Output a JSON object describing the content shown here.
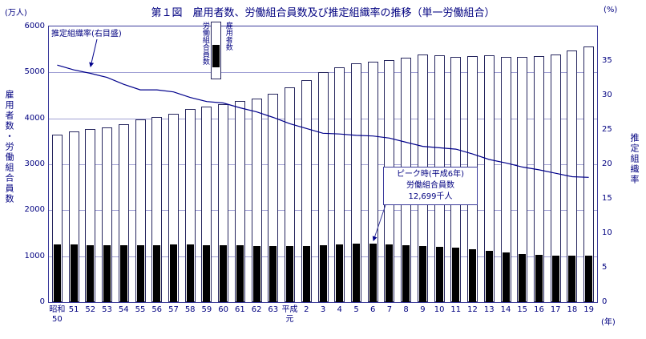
{
  "title": "第１図　雇用者数、労働組合員数及び推定組織率の推移（単一労働組合）",
  "axes": {
    "left_unit": "(万人)",
    "right_unit": "(%)",
    "x_unit": "(年)",
    "left_label": "雇用者数・労働組合員数",
    "right_label": "推定組織率",
    "left_ticks": [
      0,
      1000,
      2000,
      3000,
      4000,
      5000,
      6000
    ],
    "right_ticks": [
      0,
      5,
      10,
      15,
      20,
      25,
      30,
      35
    ]
  },
  "legend": {
    "union_label": "労働組合員数",
    "employee_label": "雇用者数"
  },
  "annotations": {
    "rate_note": "推定組織率(右目盛)",
    "peak_note_lines": [
      "ピーク時(平成6年)",
      "労働組合員数",
      "12,699千人"
    ]
  },
  "colors": {
    "text": "#000080",
    "plot_border": "#3c3c9c",
    "gridline": "#a0a0d4",
    "bar_outline": "#26265e",
    "union_bar_fill": "#000000",
    "rate_line": "#00008b"
  },
  "chart_data": {
    "type": "bar+line",
    "title": "雇用者数、労働組合員数及び推定組織率の推移（単一労働組合）",
    "x_labels_main": [
      "昭和",
      "51",
      "52",
      "53",
      "54",
      "55",
      "56",
      "57",
      "58",
      "59",
      "60",
      "61",
      "62",
      "63",
      "平成",
      "2",
      "3",
      "4",
      "5",
      "6",
      "7",
      "8",
      "9",
      "10",
      "11",
      "12",
      "13",
      "14",
      "15",
      "16",
      "17",
      "18",
      "19"
    ],
    "x_labels_sub": [
      "50",
      "",
      "",
      "",
      "",
      "",
      "",
      "",
      "",
      "",
      "",
      "",
      "",
      "",
      "元",
      "",
      "",
      "",
      "",
      "",
      "",
      "",
      "",
      "",
      "",
      "",
      "",
      "",
      "",
      "",
      "",
      "",
      ""
    ],
    "left_ylim": [
      0,
      6000
    ],
    "right_ylim": [
      0,
      40
    ],
    "series": [
      {
        "name": "雇用者数",
        "unit": "万人",
        "type": "bar",
        "axis": "left",
        "values": [
          3646,
          3712,
          3769,
          3799,
          3876,
          3971,
          4037,
          4098,
          4208,
          4265,
          4313,
          4379,
          4428,
          4538,
          4679,
          4835,
          5002,
          5119,
          5202,
          5236,
          5263,
          5322,
          5391,
          5368,
          5331,
          5356,
          5369,
          5331,
          5335,
          5355,
          5393,
          5472,
          5561
        ]
      },
      {
        "name": "労働組合員数",
        "unit": "千人",
        "type": "bar",
        "axis": "left",
        "values": [
          12590,
          12509,
          12437,
          12383,
          12309,
          12369,
          12471,
          12526,
          12520,
          12464,
          12418,
          12343,
          12272,
          12227,
          12227,
          12265,
          12397,
          12541,
          12663,
          12699,
          12614,
          12451,
          12285,
          12093,
          11825,
          11539,
          11212,
          10801,
          10531,
          10309,
          10138,
          10041,
          10080
        ]
      },
      {
        "name": "推定組織率",
        "unit": "%",
        "type": "line",
        "axis": "right",
        "values": [
          34.4,
          33.7,
          33.2,
          32.6,
          31.6,
          30.8,
          30.8,
          30.5,
          29.7,
          29.1,
          28.9,
          28.2,
          27.6,
          26.8,
          25.9,
          25.2,
          24.5,
          24.4,
          24.2,
          24.1,
          23.8,
          23.2,
          22.6,
          22.4,
          22.2,
          21.5,
          20.7,
          20.2,
          19.6,
          19.2,
          18.7,
          18.2,
          18.1
        ]
      }
    ]
  }
}
